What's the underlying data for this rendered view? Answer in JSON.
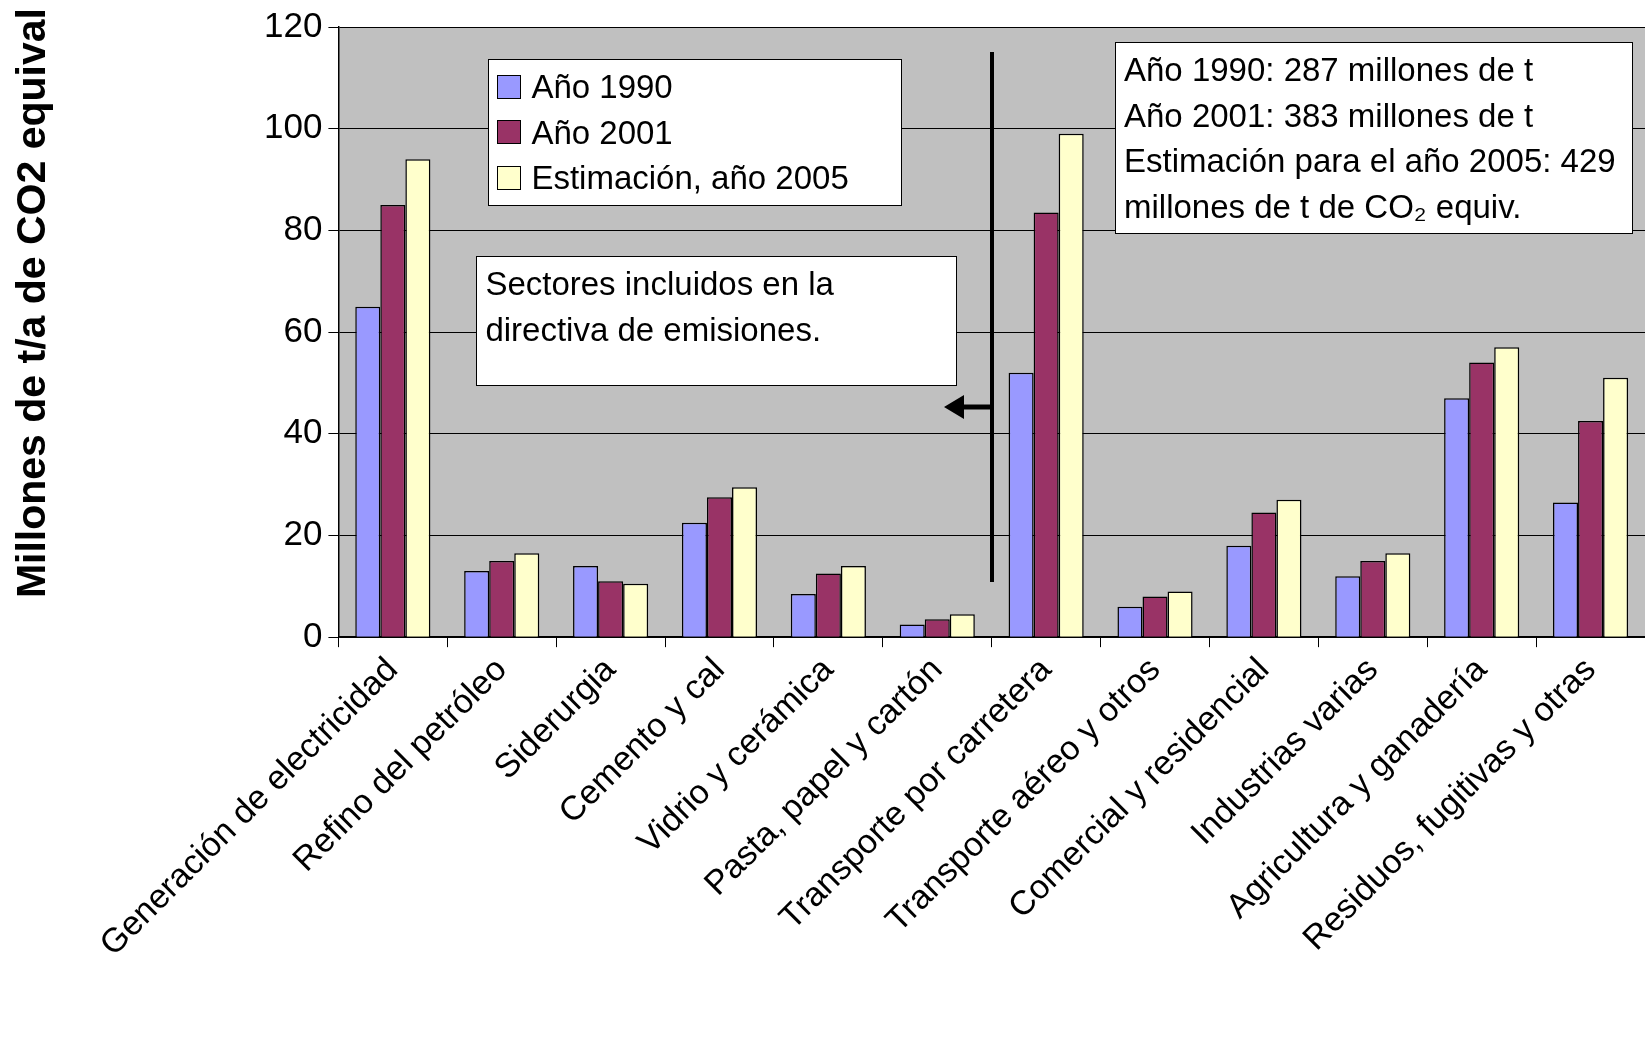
{
  "chart_data": {
    "type": "bar",
    "ylabel": "Millones de t/a de CO2 equival",
    "categories": [
      "Generación de electricidad",
      "Refino del petróleo",
      "Siderurgia",
      "Cemento y cal",
      "Vidrio y cerámica",
      "Pasta, papel y cartón",
      "Transporte por carretera",
      "Transporte aéreo y otros",
      "Comercial y residencial",
      "Industrias varias",
      "Agricultura y ganadería",
      "Residuos, fugitivas y otras"
    ],
    "series": [
      {
        "name": "Año 1990",
        "color": "#9999ff",
        "values": [
          65,
          13,
          14,
          22.5,
          8.5,
          2.5,
          52,
          6,
          18,
          12,
          47,
          26.5
        ]
      },
      {
        "name": "Año 2001",
        "color": "#993366",
        "values": [
          85,
          15,
          11,
          27.5,
          12.5,
          3.5,
          83.5,
          8,
          24.5,
          15,
          54,
          42.5
        ]
      },
      {
        "name": "Estimación, año 2005",
        "color": "#ffffcc",
        "values": [
          94,
          16.5,
          10.5,
          29.5,
          14,
          4.5,
          99,
          9,
          27,
          16.5,
          57,
          51
        ]
      }
    ],
    "ylim": [
      0,
      120
    ],
    "yticks": [
      0,
      20,
      40,
      60,
      80,
      100,
      120
    ],
    "grid": "y",
    "legend": "top left",
    "annotations": [
      "Sectores incluidos en la directiva de emisiones.",
      "Año 1990: 287 millones de t",
      "Año 2001: 383 millones de t",
      "Estimación para el año 2005: 429 millones de t de CO₂ equiv."
    ]
  }
}
